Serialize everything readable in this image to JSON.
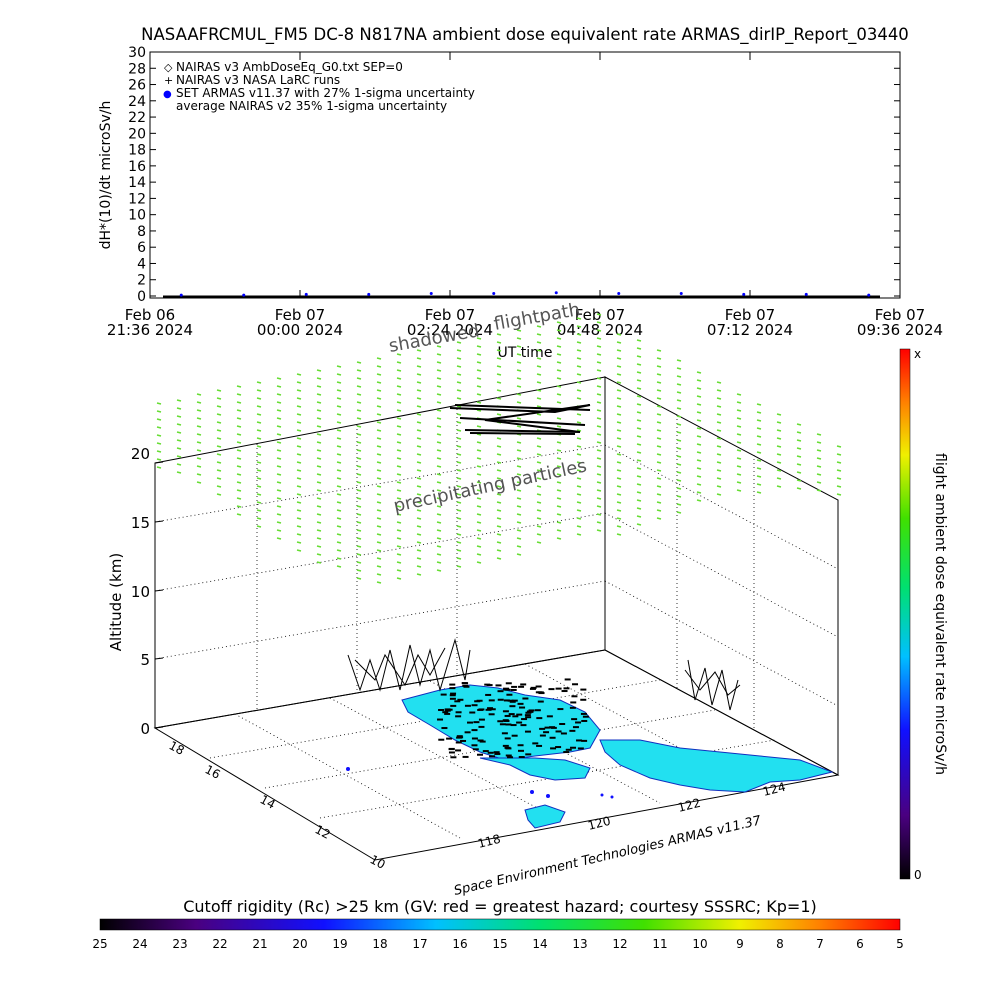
{
  "header": {
    "title": "NASAAFRCMUL_FM5 DC-8   N817NA ambient dose equivalent rate ARMAS_dirIP_Report_03440"
  },
  "colors": {
    "zero_line": "#000000",
    "precipitating": "#66dd33",
    "flightpath": "#000000",
    "land": "#22e0f0",
    "land_edge": "#1030c0",
    "armas_point": "#0000ff"
  },
  "chart_data": [
    {
      "type": "line",
      "title": "NASAAFRCMUL_FM5 DC-8   N817NA ambient dose equivalent rate ARMAS_dirIP_Report_03440",
      "ylabel": "dH*(10)/dt microSv/h",
      "xlabel": "UT time",
      "ylim": [
        0,
        30
      ],
      "y_ticks": [
        0,
        2,
        4,
        6,
        8,
        10,
        12,
        14,
        16,
        18,
        20,
        22,
        24,
        26,
        28,
        30
      ],
      "x_ticks": [
        {
          "line1": "Feb 06",
          "line2": "21:36 2024"
        },
        {
          "line1": "Feb 07",
          "line2": "00:00 2024"
        },
        {
          "line1": "Feb 07",
          "line2": "02:24 2024"
        },
        {
          "line1": "Feb 07",
          "line2": "04:48 2024"
        },
        {
          "line1": "Feb 07",
          "line2": "07:12 2024"
        },
        {
          "line1": "Feb 07",
          "line2": "09:36 2024"
        }
      ],
      "x_hours_since_first_tick": [
        0,
        2.4,
        4.8,
        7.2,
        9.6,
        12.0
      ],
      "legend": [
        {
          "symbol": "◇",
          "label": "NAIRAS v3 AmbDoseEq_G0.txt SEP=0"
        },
        {
          "symbol": "+",
          "label": "NAIRAS v3 NASA LaRC runs"
        },
        {
          "symbol": "●",
          "label": "SET ARMAS v11.37 with 27% 1-sigma uncertainty"
        },
        {
          "symbol": "",
          "label": "average NAIRAS v2 35% 1-sigma uncertainty"
        }
      ],
      "series": [
        {
          "name": "SET ARMAS v11.37 with 27% 1-sigma uncertainty",
          "x": [
            0.5,
            1.5,
            2.5,
            3.5,
            4.5,
            5.5,
            6.5,
            7.5,
            8.5,
            9.5,
            10.5,
            11.5
          ],
          "values": [
            0.1,
            0.1,
            0.2,
            0.2,
            0.3,
            0.3,
            0.4,
            0.3,
            0.3,
            0.2,
            0.2,
            0.1
          ]
        }
      ]
    },
    {
      "type": "scatter",
      "title": "",
      "zlabel": "Altitude (km)",
      "z_ticks": [
        0,
        5,
        10,
        15,
        20
      ],
      "lat_ticks": [
        10,
        12,
        14,
        16,
        18
      ],
      "lon_ticks": [
        118,
        120,
        122,
        124
      ],
      "annotations": {
        "shadowed": "shadowed",
        "flightpath": "flightpath",
        "precipitating": "precipitating particles",
        "credit": "Space Environment Technologies ARMAS v11.37"
      },
      "colorbar_right": {
        "label": "flight ambient dose equivalent rate microSv/h",
        "min_label": "0",
        "max_label": "x"
      }
    },
    {
      "type": "heatmap",
      "title": "Cutoff rigidity (Rc) >25 km (GV: red = greatest hazard; courtesy SSSRC; Kp=1)",
      "colorbar_ticks": [
        "25",
        "24",
        "23",
        "22",
        "21",
        "20",
        "19",
        "18",
        "17",
        "16",
        "15",
        "14",
        "13",
        "12",
        "11",
        "10",
        "9",
        "8",
        "7",
        "6",
        "5"
      ]
    }
  ]
}
